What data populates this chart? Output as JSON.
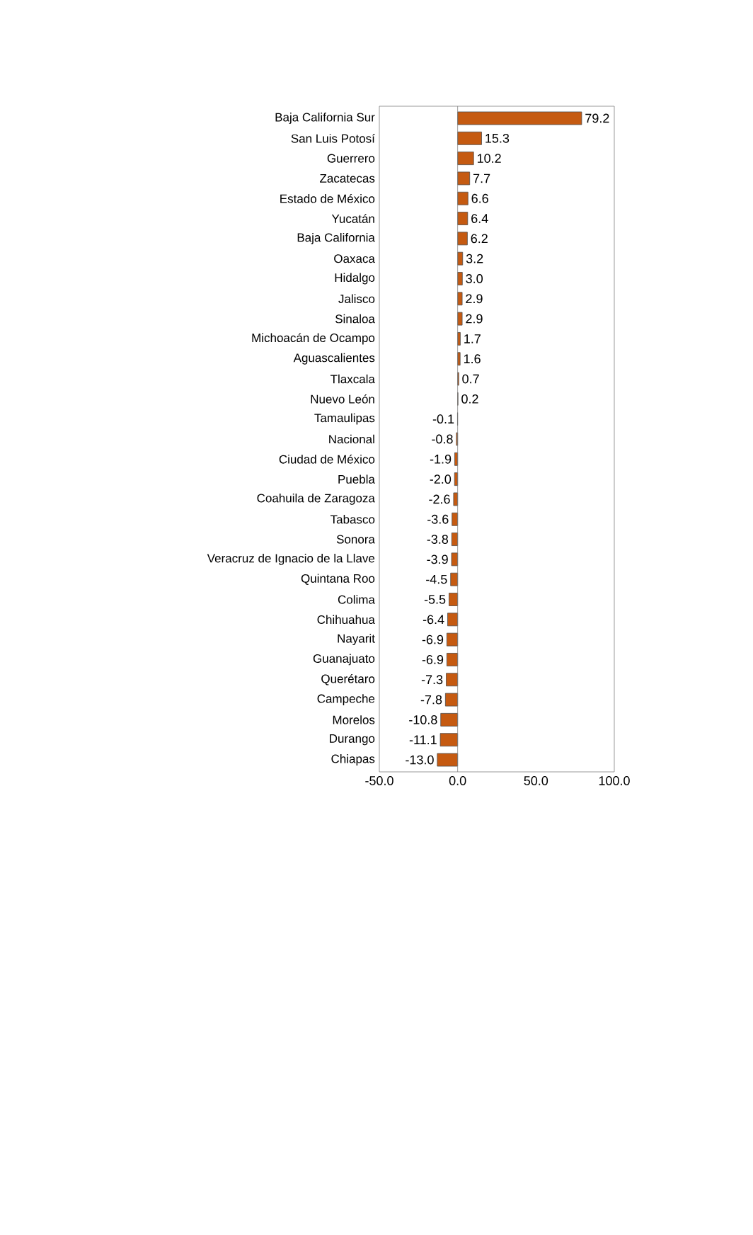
{
  "chart_data": {
    "type": "bar",
    "orientation": "horizontal",
    "color": "#c55a11",
    "value_labels": [
      "79.2",
      "15.3",
      "10.2",
      "7.7",
      "6.6",
      "6.4",
      "6.2",
      "3.2",
      "3.0",
      "2.9",
      "2.9",
      "1.7",
      "1.6",
      "0.7",
      "0.2",
      "-0.1",
      "-0.8",
      "-1.9",
      "-2.0",
      "-2.6",
      "-3.6",
      "-3.8",
      "-3.9",
      "-4.5",
      "-5.5",
      "-6.4",
      "-6.9",
      "-6.9",
      "-7.3",
      "-7.8",
      "-10.8",
      "-11.1",
      "-13.0"
    ],
    "categories": [
      "Baja California Sur",
      "San Luis Potosí",
      "Guerrero",
      "Zacatecas",
      "Estado de México",
      "Yucatán",
      "Baja California",
      "Oaxaca",
      "Hidalgo",
      "Jalisco",
      "Sinaloa",
      "Michoacán de Ocampo",
      "Aguascalientes",
      "Tlaxcala",
      "Nuevo León",
      "Tamaulipas",
      "Nacional",
      "Ciudad de México",
      "Puebla",
      "Coahuila de Zaragoza",
      "Tabasco",
      "Sonora",
      "Veracruz de Ignacio de la Llave",
      "Quintana Roo",
      "Colima",
      "Chihuahua",
      "Nayarit",
      "Guanajuato",
      "Querétaro",
      "Campeche",
      "Morelos",
      "Durango",
      "Chiapas"
    ],
    "values": [
      79.2,
      15.3,
      10.2,
      7.7,
      6.6,
      6.4,
      6.2,
      3.2,
      3.0,
      2.9,
      2.9,
      1.7,
      1.6,
      0.7,
      0.2,
      -0.1,
      -0.8,
      -1.9,
      -2.0,
      -2.6,
      -3.6,
      -3.8,
      -3.9,
      -4.5,
      -5.5,
      -6.4,
      -6.9,
      -6.9,
      -7.3,
      -7.8,
      -10.8,
      -11.1,
      -13.0
    ],
    "xlim": [
      -50,
      100
    ],
    "xticks": [
      {
        "value": -50,
        "label": "-50.0"
      },
      {
        "value": 0,
        "label": "0.0"
      },
      {
        "value": 50,
        "label": "50.0"
      },
      {
        "value": 100,
        "label": "100.0"
      }
    ]
  }
}
